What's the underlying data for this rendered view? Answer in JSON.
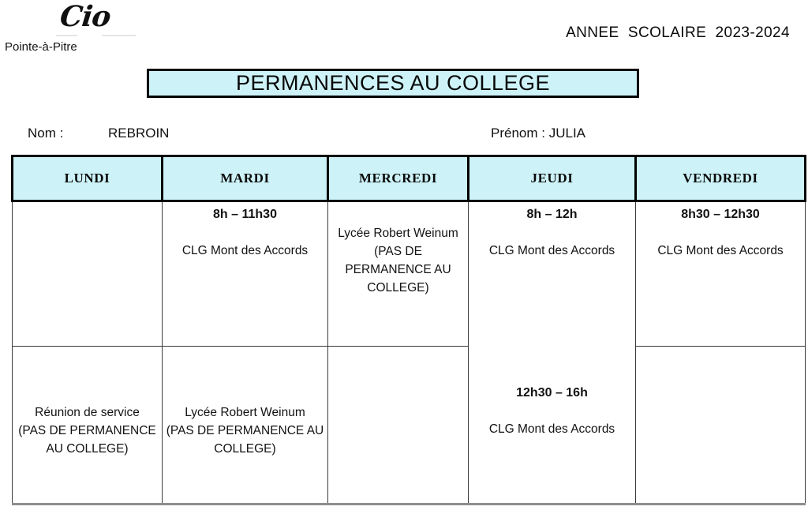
{
  "header": {
    "logo_text": "Cio",
    "logo_subtitle": "Pointe-à-Pitre",
    "school_year": "ANNEE  SCOLAIRE  2023-2024",
    "title": "PERMANENCES AU COLLEGE"
  },
  "identity": {
    "name_label": "Nom :",
    "name_value": "REBROIN",
    "firstname_label": "Prénom :",
    "firstname_value": "JULIA"
  },
  "colors": {
    "cell_fill": "#cdf3f8",
    "border_black": "#000000",
    "grid_line": "#3a3a3a"
  },
  "table": {
    "columns": [
      "LUNDI",
      "MARDI",
      "MERCREDI",
      "JEUDI",
      "VENDREDI"
    ],
    "body": {
      "mardi_morning": {
        "time": "8h – 11h30",
        "place": "CLG Mont des Accords"
      },
      "mercredi_full": {
        "lines": [
          "Lycée Robert Weinum",
          "(PAS DE",
          "PERMANENCE AU",
          "COLLEGE)"
        ]
      },
      "jeudi_morning": {
        "time": "8h – 12h",
        "place": "CLG Mont des Accords"
      },
      "jeudi_afternoon": {
        "time": "12h30 – 16h",
        "place": "CLG Mont des Accords"
      },
      "vendredi_morning": {
        "time": "8h30 – 12h30",
        "place": "CLG Mont des Accords"
      },
      "lundi_afternoon": {
        "lines": [
          "Réunion de service",
          "(PAS DE PERMANENCE",
          "AU COLLEGE)"
        ]
      },
      "mardi_afternoon": {
        "lines": [
          "Lycée Robert Weinum",
          "(PAS DE PERMANENCE AU",
          "COLLEGE)"
        ]
      }
    }
  }
}
